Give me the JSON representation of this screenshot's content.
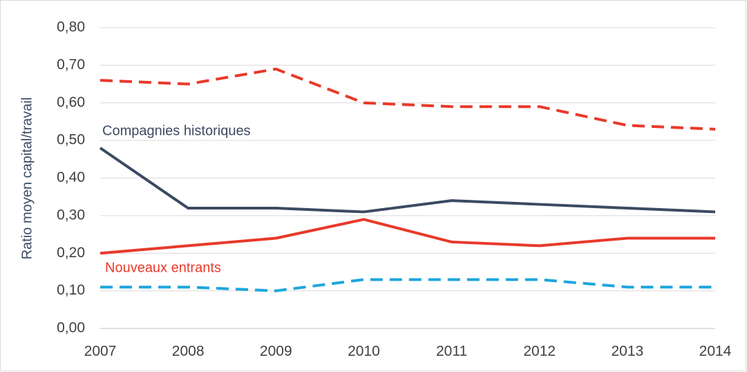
{
  "chart_data": {
    "type": "line",
    "y_label": "Ratio moyen capital/travail",
    "x": [
      2007,
      2008,
      2009,
      2010,
      2011,
      2012,
      2013,
      2014
    ],
    "xlim": [
      2007,
      2014
    ],
    "xticks": [
      2007,
      2008,
      2009,
      2010,
      2011,
      2012,
      2013,
      2014
    ],
    "ylim": [
      0,
      0.8
    ],
    "yticks": [
      {
        "value": 0,
        "label": "0,00"
      },
      {
        "value": 0.1,
        "label": "0,10"
      },
      {
        "value": 0.2,
        "label": "0,20"
      },
      {
        "value": 0.3,
        "label": "0,30"
      },
      {
        "value": 0.4,
        "label": "0,40"
      },
      {
        "value": 0.5,
        "label": "0,50"
      },
      {
        "value": 0.6,
        "label": "0,60"
      },
      {
        "value": 0.7,
        "label": "0,70"
      },
      {
        "value": 0.8,
        "label": "0,80"
      }
    ],
    "grid": true,
    "series": [
      {
        "color": "#e8392a",
        "dashed": true,
        "values": [
          0.66,
          0.65,
          0.69,
          0.6,
          0.59,
          0.59,
          0.54,
          0.53
        ]
      },
      {
        "name": "Compagnies historiques",
        "color": "#3b4a63",
        "dashed": false,
        "values": [
          0.48,
          0.32,
          0.32,
          0.31,
          0.34,
          0.33,
          0.32,
          0.31
        ]
      },
      {
        "name": "Nouveaux entrants",
        "color": "#e8392a",
        "dashed": false,
        "values": [
          0.2,
          0.22,
          0.24,
          0.29,
          0.23,
          0.22,
          0.24,
          0.24
        ]
      },
      {
        "color": "#1ea6dc",
        "dashed": true,
        "values": [
          0.11,
          0.11,
          0.1,
          0.13,
          0.13,
          0.13,
          0.11,
          0.11
        ]
      }
    ]
  }
}
